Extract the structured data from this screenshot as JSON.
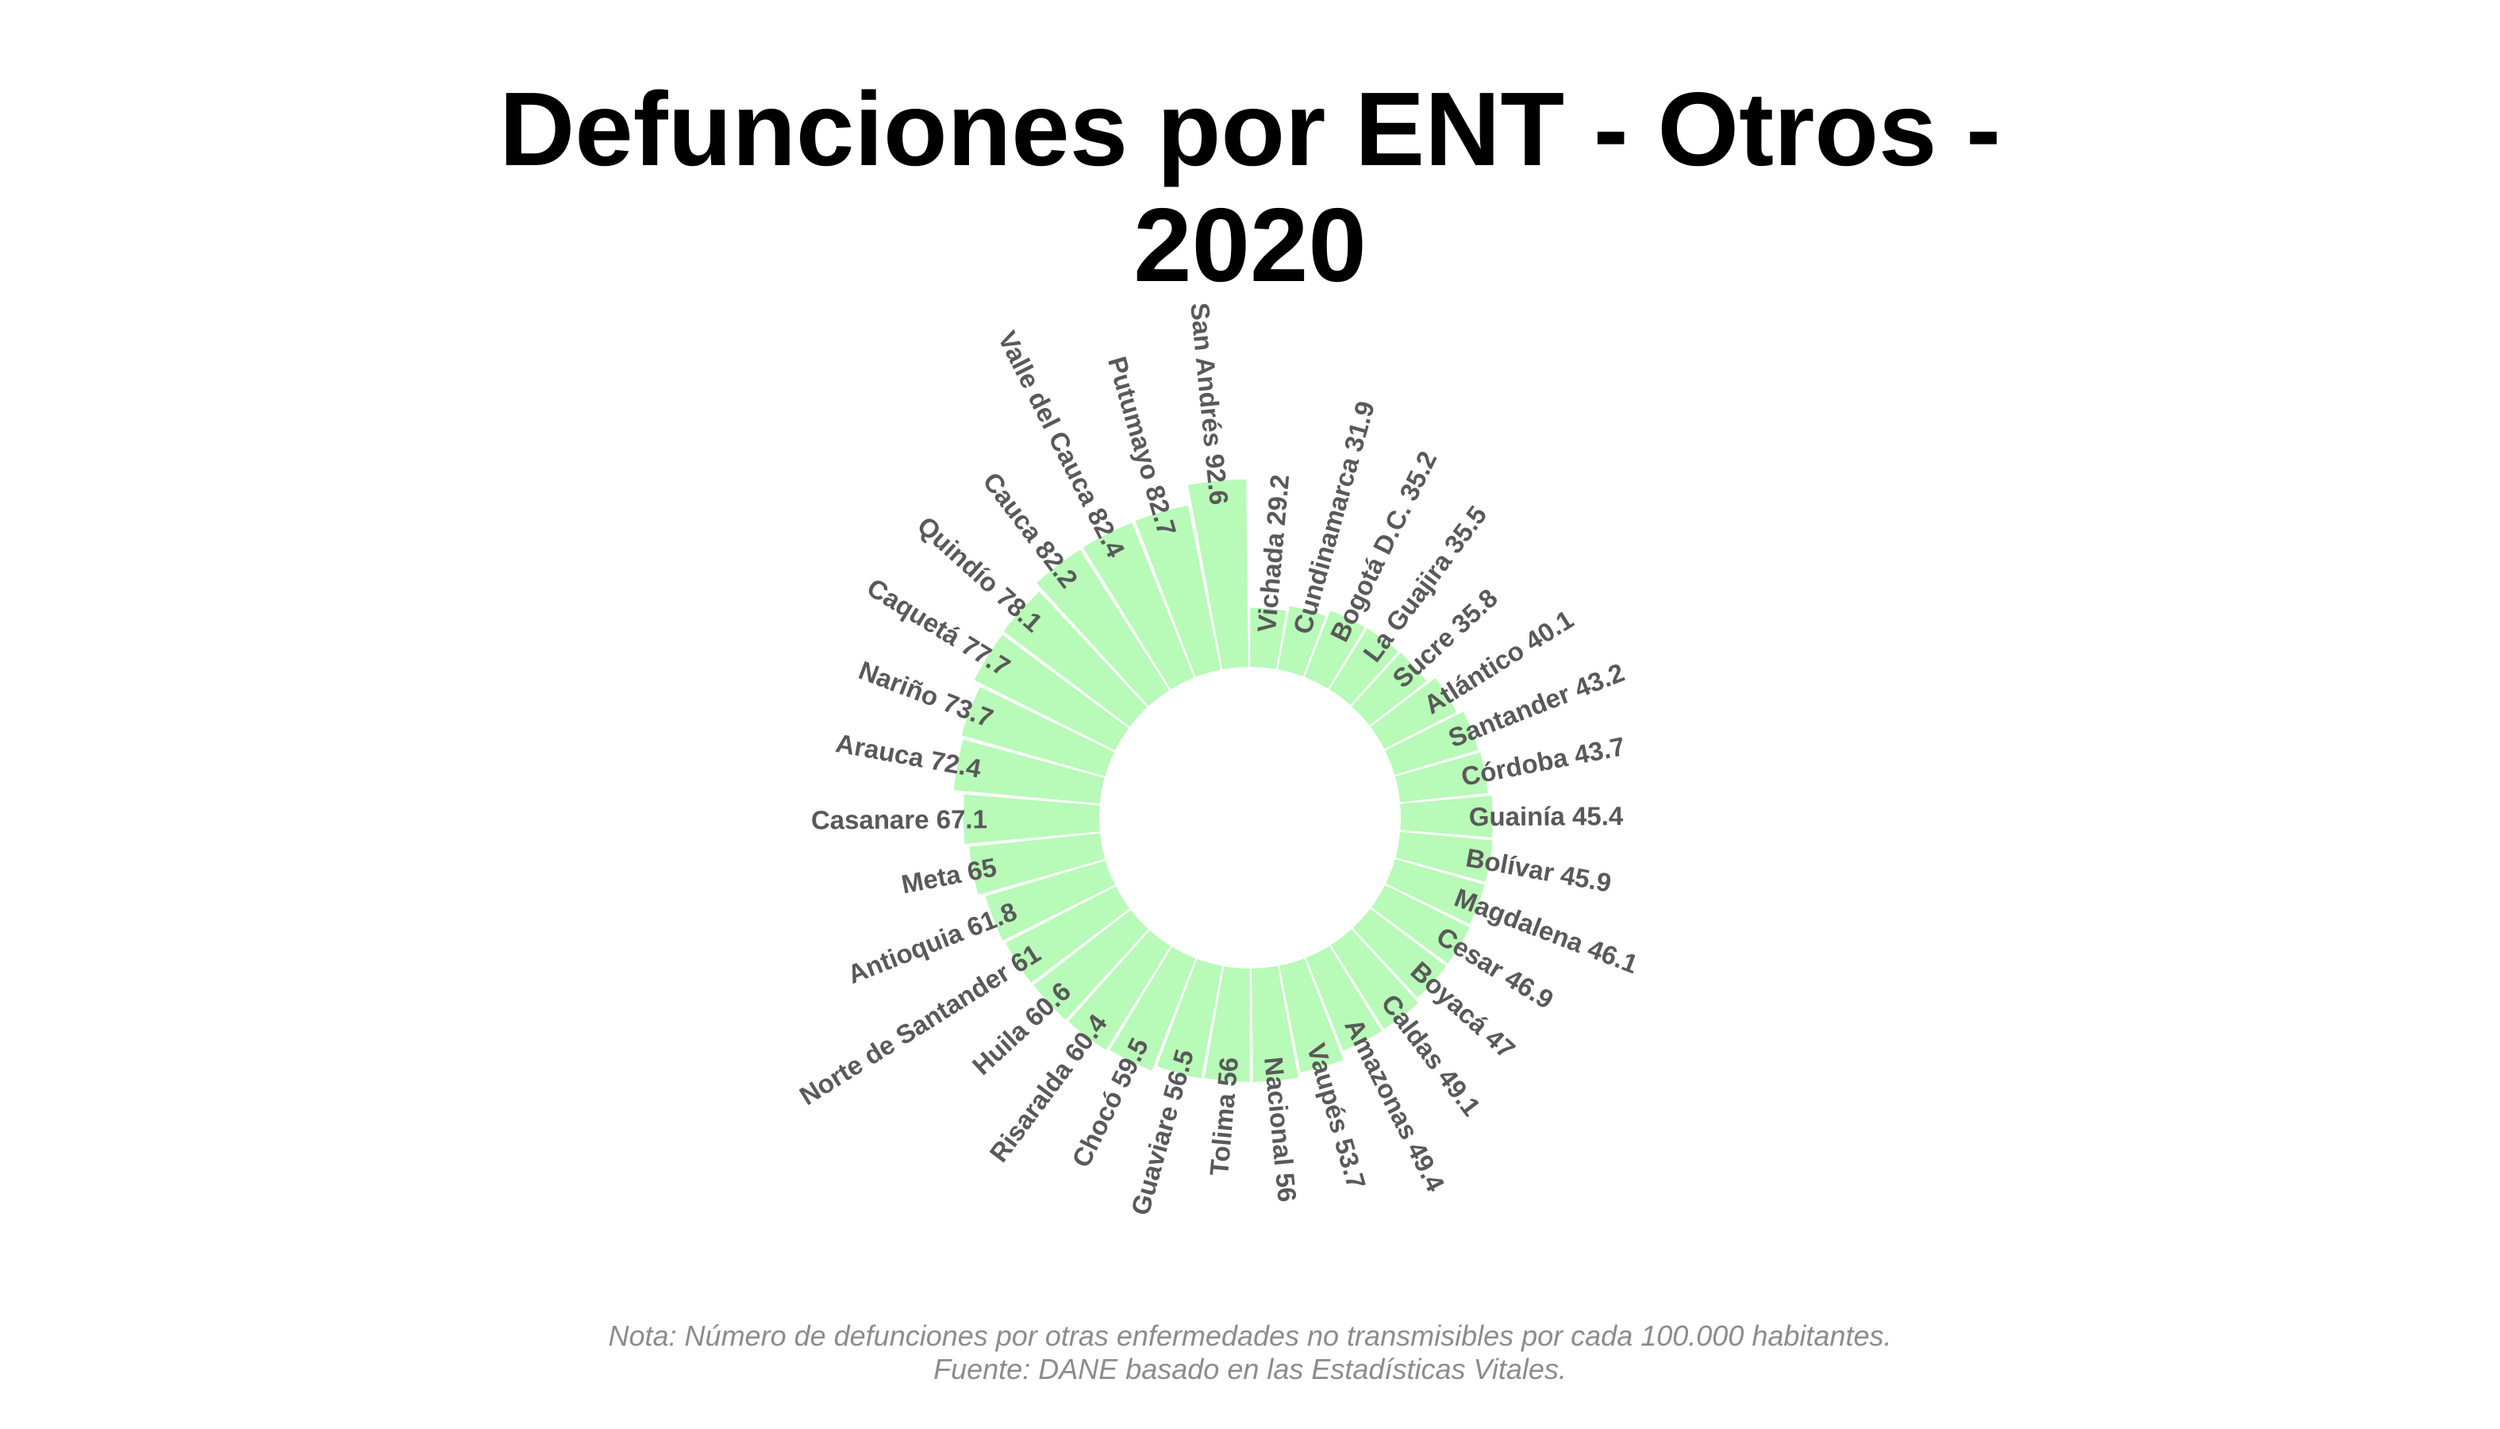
{
  "chart_data": {
    "type": "bar",
    "subtype": "circular",
    "title": "Defunciones por ENT - Otros - 2020",
    "categories": [
      "Vichada",
      "Cundinamarca",
      "Bogotá D.C.",
      "La Guajira",
      "Sucre",
      "Atlántico",
      "Santander",
      "Córdoba",
      "Guainía",
      "Bolívar",
      "Magdalena",
      "Cesar",
      "Boyacá",
      "Caldas",
      "Amazonas",
      "Vaupés",
      "Nacional",
      "Tolima",
      "Guaviare",
      "Chocó",
      "Risaralda",
      "Huila",
      "Norte de Santander",
      "Antioquia",
      "Meta",
      "Casanare",
      "Arauca",
      "Nariño",
      "Caquetá",
      "Quindío",
      "Cauca",
      "Valle del Cauca",
      "Putumayo",
      "San Andrés"
    ],
    "values": [
      29.2,
      31.9,
      35.2,
      35.5,
      35.8,
      40.1,
      43.2,
      43.7,
      45.4,
      45.9,
      46.1,
      46.9,
      47,
      49.1,
      49.4,
      53.7,
      56,
      56,
      56.5,
      59.5,
      60.4,
      60.6,
      61,
      61.8,
      65,
      67.1,
      72.4,
      73.7,
      77.7,
      78.1,
      82.2,
      82.4,
      82.7,
      92.6
    ],
    "labels": [
      "Vichada 29.2",
      "Cundinamarca 31.9",
      "Bogotá D.C. 35.2",
      "La Guajira 35.5",
      "Sucre 35.8",
      "Atlántico 40.1",
      "Santander 43.2",
      "Córdoba 43.7",
      "Guainía 45.4",
      "Bolívar 45.9",
      "Magdalena 46.1",
      "Cesar 46.9",
      "Boyacá 47",
      "Caldas 49.1",
      "Amazonas 49.4",
      "Vaupés 53.7",
      "Nacional 56",
      "Tolima 56",
      "Guaviare 56.5",
      "Chocó 59.5",
      "Risaralda 60.4",
      "Huila 60.6",
      "Norte de Santander 61",
      "Antioquia 61.8",
      "Meta 65",
      "Casanare 67.1",
      "Arauca 72.4",
      "Nariño 73.7",
      "Caquetá 77.7",
      "Quindío 78.1",
      "Cauca 82.2",
      "Valle del Cauca 82.4",
      "Putumayo 82.7",
      "San Andrés 92.6"
    ],
    "colors": {
      "bar": "#b8fab8",
      "label": "#595959",
      "title": "#000000",
      "caption": "#8c8c8c"
    },
    "grid": false,
    "legend": "none"
  },
  "title_lines": [
    "Defunciones por ENT - Otros -",
    "2020"
  ],
  "caption": {
    "note": "Nota: Número de defunciones por otras enfermedades no transmisibles por cada 100.000 habitantes.",
    "source": "Fuente: DANE basado en las Estadísticas Vitales."
  }
}
